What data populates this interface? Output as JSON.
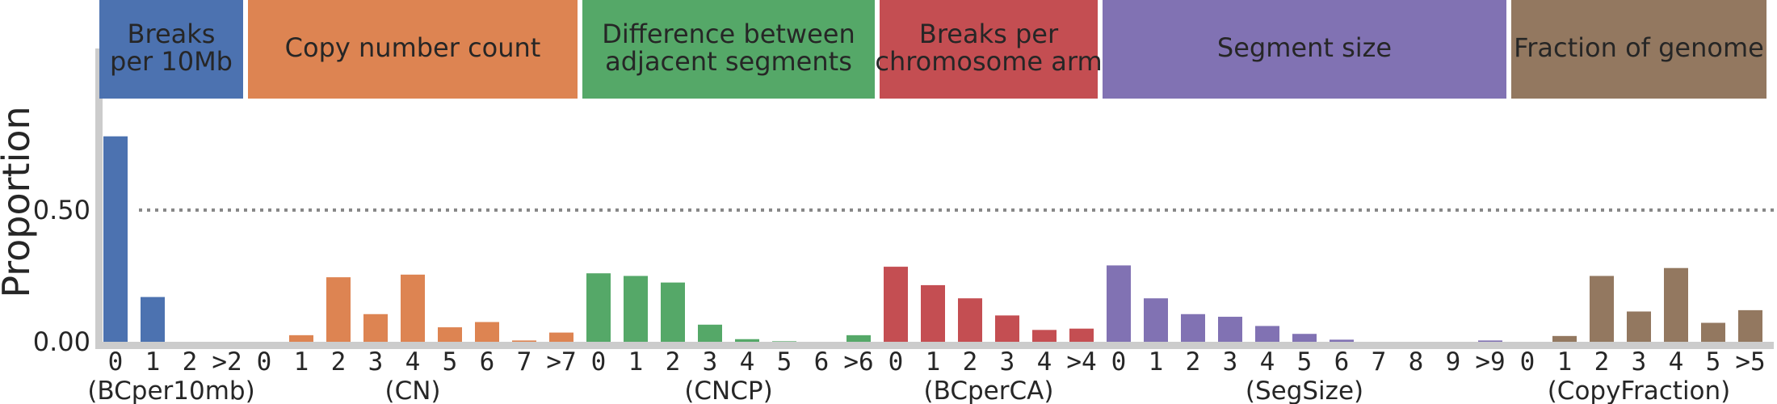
{
  "chart_data": {
    "type": "bar",
    "ylabel": "Proportion",
    "yticks": [
      0.0,
      0.5
    ],
    "ytick_labels": [
      "0.00",
      "0.50"
    ],
    "ylim": [
      0,
      0.82
    ],
    "reference_line": 0.5,
    "grid": false,
    "panels": [
      {
        "header": [
          "Breaks",
          "per 10Mb"
        ],
        "group_label": "(BCper10mb)",
        "color": "#4c72b0",
        "header_color": "#4c72b0",
        "categories": [
          "0",
          "1",
          "2",
          ">2"
        ],
        "values": [
          0.78,
          0.17,
          0.0,
          0.0
        ]
      },
      {
        "header": [
          "Copy number count"
        ],
        "group_label": "(CN)",
        "color": "#dd8452",
        "header_color": "#dd8452",
        "categories": [
          "0",
          "1",
          "2",
          "3",
          "4",
          "5",
          "6",
          "7",
          ">7"
        ],
        "values": [
          0.0,
          0.025,
          0.245,
          0.105,
          0.255,
          0.055,
          0.075,
          0.005,
          0.035
        ]
      },
      {
        "header": [
          "Difference between",
          "adjacent segments"
        ],
        "group_label": "(CNCP)",
        "color": "#55a868",
        "header_color": "#55a868",
        "categories": [
          "0",
          "1",
          "2",
          "3",
          "4",
          "5",
          "6",
          ">6"
        ],
        "values": [
          0.26,
          0.25,
          0.225,
          0.065,
          0.01,
          0.002,
          0.0,
          0.025
        ]
      },
      {
        "header": [
          "Breaks per",
          "chromosome arm"
        ],
        "group_label": "(BCperCA)",
        "color": "#c44e52",
        "header_color": "#c44e52",
        "categories": [
          "0",
          "1",
          "2",
          "3",
          "4",
          ">4"
        ],
        "values": [
          0.285,
          0.215,
          0.165,
          0.1,
          0.045,
          0.05
        ]
      },
      {
        "header": [
          "Segment size"
        ],
        "group_label": "(SegSize)",
        "color": "#8172b3",
        "header_color": "#8172b3",
        "categories": [
          "0",
          "1",
          "2",
          "3",
          "4",
          "5",
          "6",
          "7",
          "8",
          "9",
          ">9"
        ],
        "values": [
          0.29,
          0.165,
          0.105,
          0.095,
          0.06,
          0.03,
          0.008,
          0.0,
          0.0,
          0.0,
          0.005
        ]
      },
      {
        "header": [
          "Fraction of genome"
        ],
        "group_label": "(CopyFraction)",
        "color": "#937860",
        "header_color": "#937860",
        "categories": [
          "0",
          "1",
          "2",
          "3",
          "4",
          "5",
          ">5"
        ],
        "values": [
          0.0,
          0.022,
          0.25,
          0.115,
          0.28,
          0.072,
          0.12
        ]
      }
    ]
  }
}
